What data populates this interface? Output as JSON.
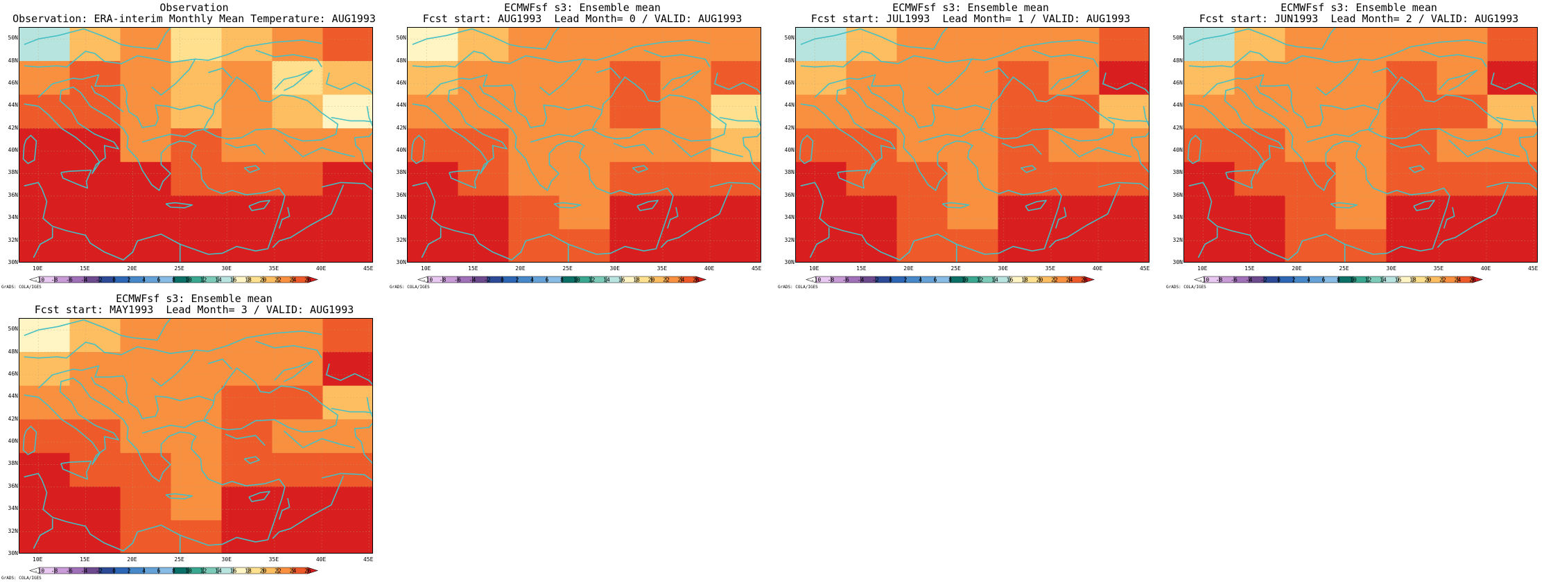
{
  "panels": [
    {
      "title1": "Observation",
      "title2": "Observation: ERA-interim Monthly Mean Temperature: AUG1993",
      "field": [
        [
          15,
          20,
          22,
          18,
          20,
          22,
          24
        ],
        [
          22,
          24,
          22,
          20,
          22,
          18,
          20
        ],
        [
          24,
          24,
          22,
          20,
          22,
          20,
          16
        ],
        [
          26,
          26,
          22,
          24,
          22,
          22,
          22
        ],
        [
          26,
          26,
          26,
          24,
          24,
          24,
          26
        ],
        [
          26,
          26,
          26,
          26,
          26,
          26,
          26
        ],
        [
          26,
          26,
          26,
          26,
          26,
          26,
          26
        ]
      ]
    },
    {
      "title1": "ECMWFsf s3: Ensemble mean",
      "title2": "Fcst start: AUG1993  Lead Month= 0 / VALID: AUG1993",
      "field": [
        [
          16,
          20,
          22,
          22,
          22,
          22,
          22
        ],
        [
          20,
          22,
          22,
          22,
          24,
          22,
          24
        ],
        [
          22,
          22,
          22,
          22,
          24,
          22,
          18
        ],
        [
          24,
          24,
          22,
          22,
          22,
          22,
          20
        ],
        [
          26,
          24,
          22,
          22,
          24,
          24,
          24
        ],
        [
          26,
          26,
          24,
          22,
          26,
          26,
          26
        ],
        [
          26,
          26,
          24,
          24,
          26,
          26,
          26
        ]
      ]
    },
    {
      "title1": "ECMWFsf s3: Ensemble mean",
      "title2": "Fcst start: JUL1993  Lead Month= 1 / VALID: AUG1993",
      "field": [
        [
          14,
          20,
          22,
          22,
          22,
          22,
          24
        ],
        [
          20,
          22,
          22,
          22,
          24,
          22,
          26
        ],
        [
          22,
          22,
          22,
          22,
          24,
          24,
          20
        ],
        [
          24,
          24,
          22,
          22,
          24,
          22,
          22
        ],
        [
          26,
          24,
          24,
          22,
          24,
          24,
          24
        ],
        [
          26,
          26,
          24,
          22,
          26,
          26,
          26
        ],
        [
          26,
          26,
          24,
          24,
          26,
          26,
          26
        ]
      ]
    },
    {
      "title1": "ECMWFsf s3: Ensemble mean",
      "title2": "Fcst start: JUN1993  Lead Month= 2 / VALID: AUG1993",
      "field": [
        [
          14,
          20,
          22,
          22,
          22,
          22,
          24
        ],
        [
          20,
          22,
          22,
          22,
          24,
          22,
          26
        ],
        [
          22,
          22,
          22,
          22,
          24,
          24,
          20
        ],
        [
          24,
          24,
          22,
          22,
          24,
          22,
          22
        ],
        [
          26,
          24,
          24,
          22,
          24,
          24,
          24
        ],
        [
          26,
          26,
          24,
          22,
          26,
          26,
          26
        ],
        [
          26,
          26,
          24,
          24,
          26,
          26,
          26
        ]
      ]
    },
    {
      "title1": "ECMWFsf s3: Ensemble mean",
      "title2": "Fcst start: MAY1993  Lead Month= 3 / VALID: AUG1993",
      "field": [
        [
          16,
          20,
          22,
          22,
          22,
          22,
          24
        ],
        [
          20,
          22,
          22,
          22,
          22,
          22,
          26
        ],
        [
          22,
          22,
          22,
          22,
          24,
          24,
          20
        ],
        [
          24,
          24,
          22,
          22,
          24,
          22,
          22
        ],
        [
          26,
          24,
          24,
          22,
          24,
          24,
          24
        ],
        [
          26,
          26,
          24,
          22,
          26,
          26,
          26
        ],
        [
          26,
          26,
          24,
          24,
          26,
          26,
          26
        ]
      ]
    }
  ],
  "lat_labels": [
    "30N",
    "32N",
    "34N",
    "36N",
    "38N",
    "40N",
    "42N",
    "44N",
    "46N",
    "48N",
    "50N"
  ],
  "lon_labels": [
    "10E",
    "15E",
    "20E",
    "25E",
    "30E",
    "35E",
    "40E",
    "45E"
  ],
  "legend": {
    "credit": "GrADS: COLA/IGES",
    "ticks": [
      "-10",
      "-8",
      "-6",
      "-4",
      "-2",
      "0",
      "2",
      "4",
      "6",
      "8",
      "10",
      "12",
      "14",
      "16",
      "18",
      "20",
      "22",
      "24",
      "26"
    ],
    "colors": [
      "#ffffff",
      "#e8c8f0",
      "#c89ad8",
      "#a070b8",
      "#6e4a8e",
      "#2c4a96",
      "#2e66b6",
      "#4688c8",
      "#64a2d8",
      "#86bce6",
      "#0a7068",
      "#3aa890",
      "#7ccab8",
      "#b8e4e0",
      "#fff4c4",
      "#fee08e",
      "#fdbe62",
      "#f99040",
      "#ef5a2a",
      "#d81e1e"
    ]
  },
  "colors": {
    "boundary": "#45c0c4",
    "grid": "#b8a070"
  }
}
